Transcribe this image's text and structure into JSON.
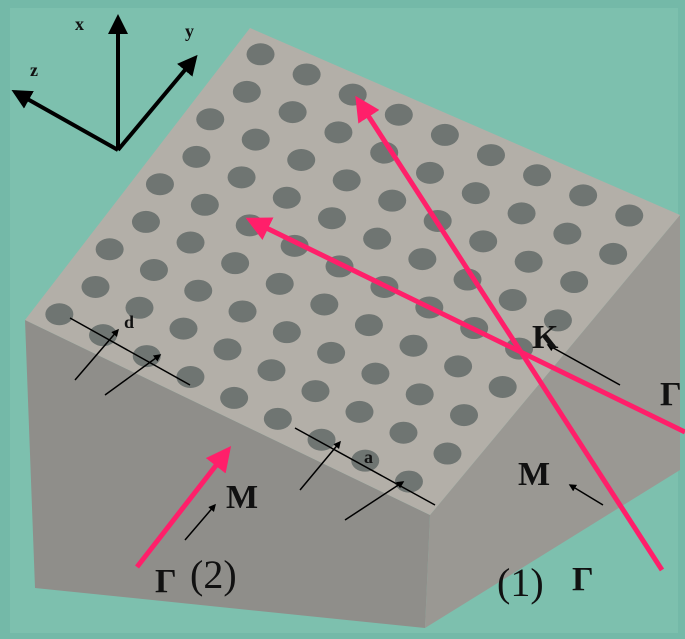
{
  "annotations": [
    {
      "text": "x"
    },
    {
      "text": "y"
    },
    {
      "text": "z"
    },
    {
      "text": "d"
    },
    {
      "text": "a"
    },
    {
      "text": "K"
    },
    {
      "text": "Γ"
    },
    {
      "text": "M"
    },
    {
      "text": "(1)"
    },
    {
      "text": "Γ"
    },
    {
      "text": "M"
    },
    {
      "text": "Γ"
    },
    {
      "text": "(2)"
    }
  ]
}
